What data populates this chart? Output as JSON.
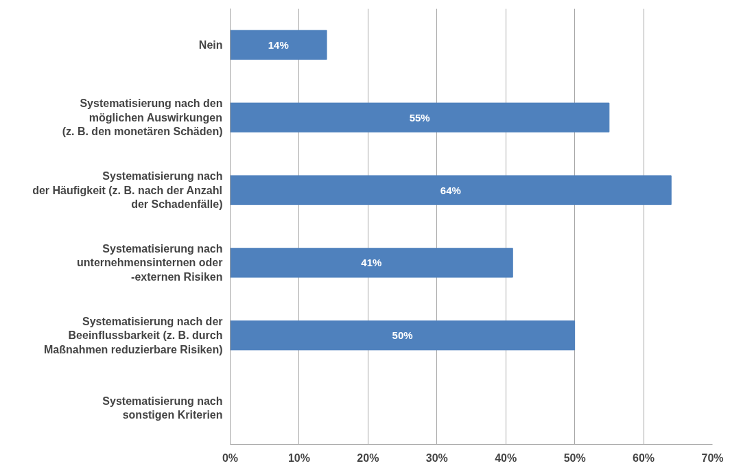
{
  "chart_data": {
    "type": "bar",
    "orientation": "horizontal",
    "categories": [
      "Nein",
      "Systematisierung nach den\nmöglichen Auswirkungen\n(z. B. den monetären Schäden)",
      "Systematisierung nach\nder Häufigkeit (z. B. nach der Anzahl\nder Schadenfälle)",
      "Systematisierung nach\nunternehmensinternen oder\n-externen Risiken",
      "Systematisierung nach der\nBeeinflussbarkeit (z. B. durch\nMaßnahmen reduzierbare Risiken)",
      "Systematisierung nach\nsonstigen Kriterien"
    ],
    "values": [
      14,
      55,
      64,
      41,
      50,
      null
    ],
    "value_labels": [
      "14%",
      "55%",
      "64%",
      "41%",
      "50%",
      null
    ],
    "color": "#4f81bd",
    "xlim": [
      0,
      70
    ],
    "xticks": [
      {
        "value": 0,
        "label": "0%"
      },
      {
        "value": 10,
        "label": "10%"
      },
      {
        "value": 20,
        "label": "20%"
      },
      {
        "value": 30,
        "label": "30%"
      },
      {
        "value": 40,
        "label": "40%"
      },
      {
        "value": 50,
        "label": "50%"
      },
      {
        "value": 60,
        "label": "60%"
      },
      {
        "value": 70,
        "label": "70%"
      }
    ],
    "grid": "x"
  }
}
